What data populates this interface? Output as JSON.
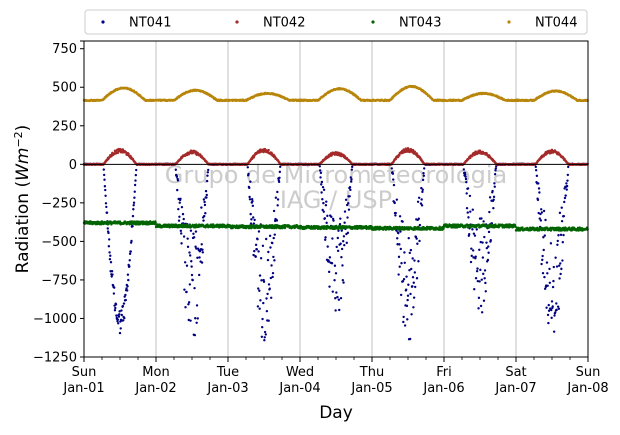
{
  "chart_data": {
    "type": "scatter",
    "title": "",
    "xlabel": "Day",
    "ylabel_main": "Radiation (",
    "ylabel_unit_base": "Wm",
    "ylabel_unit_exp": "−2",
    "ylabel_close": ")",
    "ylim": [
      -1250,
      800
    ],
    "yticks": [
      800,
      750,
      500,
      250,
      0,
      -250,
      -500,
      -750,
      -1000,
      -1250
    ],
    "ytick_labels": [
      "",
      "750",
      "500",
      "250",
      "0",
      "−250",
      "−500",
      "−750",
      "−1000",
      "−1250"
    ],
    "xlim": [
      0,
      7
    ],
    "x_ticks": [
      {
        "day": 0,
        "line1": "Sun",
        "line2": "Jan-01"
      },
      {
        "day": 1,
        "line1": "Mon",
        "line2": "Jan-02"
      },
      {
        "day": 2,
        "line1": "Tue",
        "line2": "Jan-03"
      },
      {
        "day": 3,
        "line1": "Wed",
        "line2": "Jan-04"
      },
      {
        "day": 4,
        "line1": "Thu",
        "line2": "Jan-05"
      },
      {
        "day": 5,
        "line1": "Fri",
        "line2": "Jan-06"
      },
      {
        "day": 6,
        "line1": "Sat",
        "line2": "Jan-07"
      },
      {
        "day": 7,
        "line1": "Sun",
        "line2": "Jan-08"
      }
    ],
    "x_minor_per_day": 4,
    "grid": "vertical",
    "legend_position": "top",
    "watermark_line1": "Grupo de Micrometeorologia",
    "watermark_line2": "IAG / USP",
    "series": [
      {
        "name": "NT041",
        "color": "#000080",
        "kind": "daytime_negative",
        "baseline": 0,
        "daily_min": [
          -1100,
          -1200,
          -1150,
          -1050,
          -1200,
          -1000,
          -1180
        ]
      },
      {
        "name": "NT042",
        "color": "#a52a2a",
        "kind": "daytime_positive",
        "baseline": 0,
        "daily_max": [
          100,
          90,
          105,
          80,
          105,
          90,
          95
        ]
      },
      {
        "name": "NT043",
        "color": "#006400",
        "kind": "near_constant",
        "baseline": -400,
        "daily_mean": [
          -380,
          -400,
          -405,
          -410,
          -415,
          -400,
          -420
        ]
      },
      {
        "name": "NT044",
        "color": "#b8860b",
        "kind": "near_constant",
        "baseline": 415,
        "daily_max": [
          495,
          480,
          460,
          490,
          505,
          460,
          475
        ]
      }
    ]
  }
}
